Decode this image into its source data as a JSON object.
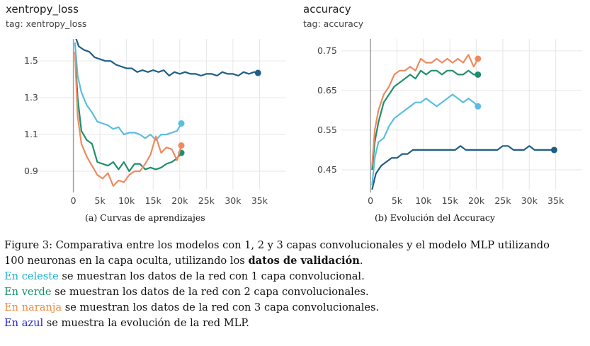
{
  "panels": [
    {
      "title": "xentropy_loss",
      "tag": "tag: xentropy_loss",
      "subcaption": "(a) Curvas de aprendizajes"
    },
    {
      "title": "accuracy",
      "tag": "tag: accuracy",
      "subcaption": "(b) Evolución del Accuracy"
    }
  ],
  "caption": {
    "line1": "Figure 3: Comparativa entre los modelos con 1, 2 y 3 capas convolucionales y el modelo MLP utilizando",
    "line2_pre": "100 neuronas en la capa oculta, utilizando los ",
    "line2_bold": "datos de validación",
    "line2_post": ".",
    "line3_colored": "En celeste",
    "line3_rest": " se muestran los datos de la red con 1 capa convolucional.",
    "line4_colored": "En verde",
    "line4_rest": " se muestran los datos de la red con 2 capa convolucionales.",
    "line5_colored": "En naranja",
    "line5_rest": " se muestran los datos de la red con 3 capa convolucionales.",
    "line6_colored": "En azul",
    "line6_rest": " se muestra la evolución de la red MLP.",
    "colors": {
      "celeste": "#1ab2d6",
      "verde": "#13906b",
      "naranja": "#f08a3c",
      "azul": "#2222cc"
    }
  },
  "chart_data": [
    {
      "type": "line",
      "title": "xentropy_loss",
      "xlim": [
        -9000,
        40000
      ],
      "ylim": [
        0.8,
        1.62
      ],
      "xticks": [
        0,
        5000,
        10000,
        15000,
        20000,
        25000,
        30000,
        35000
      ],
      "xtick_labels": [
        "0",
        "5k",
        "10k",
        "15k",
        "20k",
        "25k",
        "30k",
        "35k"
      ],
      "yticks": [
        0.9,
        1.1,
        1.3,
        1.5
      ],
      "ytick_labels": [
        "0.9",
        "1.1",
        "1.3",
        "1.5"
      ],
      "grid": true,
      "series": [
        {
          "color": "#1f5f86",
          "end_marker": true,
          "x": [
            300,
            1000,
            2000,
            3000,
            4000,
            5000,
            6000,
            7000,
            8000,
            9000,
            10000,
            11000,
            12000,
            13000,
            14000,
            15000,
            16000,
            17000,
            18000,
            19000,
            20000,
            21000,
            22000,
            23000,
            24000,
            25000,
            26000,
            27000,
            28000,
            29000,
            30000,
            31000,
            32000,
            33000,
            34000,
            34700
          ],
          "y": [
            1.64,
            1.58,
            1.56,
            1.55,
            1.52,
            1.51,
            1.5,
            1.5,
            1.48,
            1.47,
            1.46,
            1.46,
            1.44,
            1.45,
            1.44,
            1.45,
            1.44,
            1.45,
            1.42,
            1.44,
            1.43,
            1.44,
            1.43,
            1.43,
            1.42,
            1.43,
            1.43,
            1.42,
            1.44,
            1.43,
            1.43,
            1.42,
            1.44,
            1.43,
            1.44,
            1.435
          ]
        },
        {
          "color": "#5bbde0",
          "end_marker": true,
          "x": [
            300,
            800,
            1500,
            2500,
            3500,
            4500,
            5500,
            6500,
            7500,
            8500,
            9500,
            10500,
            11500,
            12500,
            13500,
            14500,
            15500,
            16500,
            17500,
            18500,
            19500,
            20300
          ],
          "y": [
            1.6,
            1.42,
            1.33,
            1.26,
            1.22,
            1.17,
            1.16,
            1.15,
            1.13,
            1.14,
            1.1,
            1.11,
            1.11,
            1.1,
            1.08,
            1.1,
            1.07,
            1.1,
            1.1,
            1.11,
            1.12,
            1.16
          ]
        },
        {
          "color": "#1f8f6b",
          "end_marker": true,
          "x": [
            300,
            800,
            1500,
            2500,
            3500,
            4500,
            5500,
            6500,
            7500,
            8500,
            9500,
            10500,
            11500,
            12500,
            13500,
            14500,
            15500,
            16500,
            17500,
            18500,
            19500,
            20300
          ],
          "y": [
            1.55,
            1.3,
            1.12,
            1.07,
            1.05,
            0.95,
            0.94,
            0.93,
            0.95,
            0.91,
            0.95,
            0.9,
            0.94,
            0.94,
            0.91,
            0.92,
            0.91,
            0.92,
            0.94,
            0.95,
            0.97,
            1.0
          ]
        },
        {
          "color": "#ee8a60",
          "end_marker": true,
          "x": [
            300,
            800,
            1500,
            2500,
            3500,
            4500,
            5500,
            6500,
            7500,
            8500,
            9500,
            10500,
            11500,
            12500,
            13500,
            14500,
            15500,
            16500,
            17500,
            18500,
            19500,
            20300
          ],
          "y": [
            1.55,
            1.2,
            1.05,
            0.98,
            0.93,
            0.88,
            0.86,
            0.89,
            0.82,
            0.85,
            0.84,
            0.88,
            0.9,
            0.9,
            0.94,
            0.99,
            1.09,
            1.0,
            1.03,
            1.02,
            0.96,
            1.04
          ]
        }
      ]
    },
    {
      "type": "line",
      "title": "accuracy",
      "xlim": [
        -5500,
        40000
      ],
      "ylim": [
        0.4,
        0.78
      ],
      "xticks": [
        0,
        5000,
        10000,
        15000,
        20000,
        25000,
        30000,
        35000
      ],
      "xtick_labels": [
        "0",
        "5k",
        "10k",
        "15k",
        "20k",
        "25k",
        "30k",
        "35k"
      ],
      "yticks": [
        0.45,
        0.55,
        0.65,
        0.75
      ],
      "ytick_labels": [
        "0.45",
        "0.55",
        "0.65",
        "0.75"
      ],
      "grid": true,
      "series": [
        {
          "color": "#1f5f86",
          "end_marker": true,
          "x": [
            300,
            1000,
            2000,
            3000,
            4000,
            5000,
            6000,
            7000,
            8000,
            9000,
            10000,
            11000,
            12000,
            13000,
            14000,
            15000,
            16000,
            17000,
            18000,
            19000,
            20000,
            21000,
            22000,
            23000,
            24000,
            25000,
            26000,
            27000,
            28000,
            29000,
            30000,
            31000,
            32000,
            33000,
            34000,
            34700
          ],
          "y": [
            0.4,
            0.44,
            0.46,
            0.47,
            0.48,
            0.48,
            0.49,
            0.49,
            0.5,
            0.5,
            0.5,
            0.5,
            0.5,
            0.5,
            0.5,
            0.5,
            0.5,
            0.51,
            0.5,
            0.5,
            0.5,
            0.5,
            0.5,
            0.5,
            0.5,
            0.51,
            0.51,
            0.5,
            0.5,
            0.5,
            0.51,
            0.5,
            0.5,
            0.5,
            0.5,
            0.5
          ]
        },
        {
          "color": "#5bbde0",
          "end_marker": true,
          "x": [
            300,
            800,
            1500,
            2500,
            3500,
            4500,
            5500,
            6500,
            7500,
            8500,
            9500,
            10500,
            11500,
            12500,
            13500,
            14500,
            15500,
            16500,
            17500,
            18500,
            19500,
            20300
          ],
          "y": [
            0.41,
            0.48,
            0.52,
            0.53,
            0.56,
            0.58,
            0.59,
            0.6,
            0.61,
            0.62,
            0.62,
            0.63,
            0.62,
            0.61,
            0.62,
            0.63,
            0.64,
            0.63,
            0.62,
            0.63,
            0.62,
            0.61
          ]
        },
        {
          "color": "#1f8f6b",
          "end_marker": true,
          "x": [
            300,
            800,
            1500,
            2500,
            3500,
            4500,
            5500,
            6500,
            7500,
            8500,
            9500,
            10500,
            11500,
            12500,
            13500,
            14500,
            15500,
            16500,
            17500,
            18500,
            19500,
            20300
          ],
          "y": [
            0.45,
            0.52,
            0.57,
            0.62,
            0.64,
            0.66,
            0.67,
            0.68,
            0.69,
            0.68,
            0.7,
            0.69,
            0.7,
            0.7,
            0.69,
            0.7,
            0.7,
            0.69,
            0.69,
            0.7,
            0.69,
            0.69
          ]
        },
        {
          "color": "#ee8a60",
          "end_marker": true,
          "x": [
            300,
            800,
            1500,
            2500,
            3500,
            4500,
            5500,
            6500,
            7500,
            8500,
            9500,
            10500,
            11500,
            12500,
            13500,
            14500,
            15500,
            16500,
            17500,
            18500,
            19500,
            20300
          ],
          "y": [
            0.46,
            0.55,
            0.6,
            0.64,
            0.66,
            0.69,
            0.7,
            0.7,
            0.71,
            0.7,
            0.73,
            0.72,
            0.72,
            0.73,
            0.72,
            0.73,
            0.72,
            0.73,
            0.72,
            0.74,
            0.71,
            0.73
          ]
        }
      ]
    }
  ]
}
